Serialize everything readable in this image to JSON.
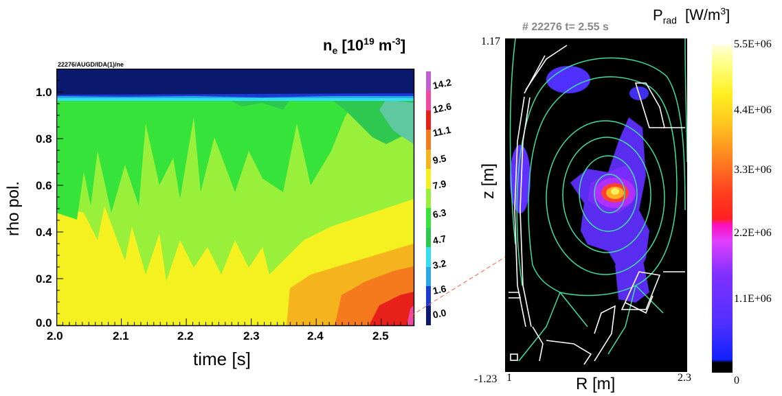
{
  "left_panel": {
    "title_main": "n",
    "title_sub": "e",
    "title_unit_open": " [10",
    "title_exp": "19",
    "title_unit_mid": " m",
    "title_exp2": "-3",
    "title_unit_close": "]",
    "source_label": "22276/AUGD/IDA(1)/ne",
    "ylabel": "rho pol.",
    "xlabel": "time  [s]"
  },
  "right_panel": {
    "shot_label": "# 22276 t= 2.55 s",
    "title_main": "P",
    "title_sub": "rad",
    "title_unit_open": "[W/m",
    "title_exp": "3",
    "title_unit_close": "]",
    "ylabel": "z [m]",
    "xlabel": "R [m]",
    "z_top": "1.17",
    "z_bottom": "-1.23",
    "r_left": "1",
    "r_right": "2.3"
  },
  "chart_data": [
    {
      "type": "heatmap",
      "title": "n_e [10^19 m^-3]",
      "xlabel": "time  [s]",
      "ylabel": "rho pol.",
      "xlim": [
        2.0,
        2.55
      ],
      "ylim": [
        0.0,
        1.1
      ],
      "x_ticks": [
        "2.0",
        "2.1",
        "2.2",
        "2.3",
        "2.4",
        "2.5"
      ],
      "y_ticks": [
        "0.0",
        "0.2",
        "0.4",
        "0.6",
        "0.8",
        "1.0"
      ],
      "colorbar_levels": [
        "0.0",
        "1.6",
        "3.2",
        "4.7",
        "6.3",
        "7.9",
        "9.5",
        "11.1",
        "12.6",
        "14.2"
      ],
      "colorbar_colors": [
        "#0b1a6e",
        "#1a3ad4",
        "#29a9e6",
        "#33e0f0",
        "#2ec850",
        "#35e33a",
        "#99f03a",
        "#f5f020",
        "#f5b41e",
        "#f57a1e",
        "#e8201a",
        "#f04aa0",
        "#c060d0"
      ],
      "contour_bands": [
        {
          "level": "0.0",
          "color": "#0b1a6e",
          "rho_range": [
            1.0,
            1.1
          ]
        },
        {
          "level": "4.7",
          "color": "#33e0f0",
          "rho_range": [
            0.98,
            1.0
          ]
        },
        {
          "level": "6.3",
          "color": "#2ec850",
          "rho_range": [
            0.55,
            0.98
          ]
        },
        {
          "level": "7.9",
          "color": "#99f03a",
          "rho_range": [
            0.15,
            0.55
          ]
        },
        {
          "level": "9.5",
          "color": "#f5f020",
          "rho_range": [
            0.0,
            0.2
          ]
        },
        {
          "level": "11.1",
          "color": "#f57a1e",
          "note": "core, t > 2.36"
        },
        {
          "level": "12.6",
          "color": "#e8201a",
          "note": "core, t > 2.5"
        }
      ]
    },
    {
      "type": "heatmap",
      "title": "P_rad [W/m^3]",
      "xlabel": "R [m]",
      "ylabel": "z [m]",
      "xlim": [
        1.0,
        2.3
      ],
      "ylim": [
        -1.23,
        1.17
      ],
      "colorbar_ticks": [
        "0",
        "1.1E+06",
        "2.2E+06",
        "3.3E+06",
        "4.4E+06",
        "5.5E+06"
      ],
      "colorbar_range": [
        0,
        5500000.0
      ],
      "peak_location": {
        "R": 1.63,
        "z": 0.07,
        "value": 5500000.0
      }
    }
  ]
}
